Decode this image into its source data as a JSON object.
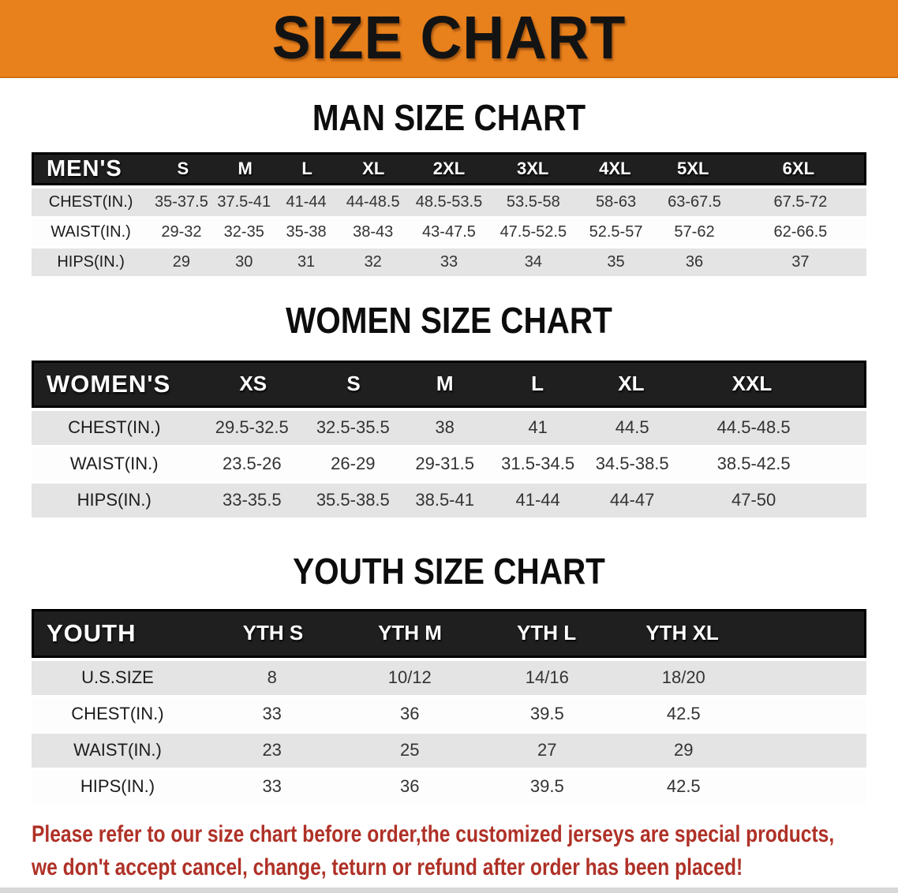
{
  "banner": {
    "title": "SIZE CHART"
  },
  "sections": [
    {
      "id": "men",
      "title": "MAN SIZE CHART",
      "table": {
        "header_label": "MEN'S",
        "columns": [
          "S",
          "M",
          "L",
          "XL",
          "2XL",
          "3XL",
          "4XL",
          "5XL",
          "6XL"
        ],
        "rows": [
          {
            "label": "CHEST(IN.)",
            "values": [
              "35-37.5",
              "37.5-41",
              "41-44",
              "44-48.5",
              "48.5-53.5",
              "53.5-58",
              "58-63",
              "63-67.5",
              "67.5-72"
            ]
          },
          {
            "label": "WAIST(IN.)",
            "values": [
              "29-32",
              "32-35",
              "35-38",
              "38-43",
              "43-47.5",
              "47.5-52.5",
              "52.5-57",
              "57-62",
              "62-66.5"
            ]
          },
          {
            "label": "HIPS(IN.)",
            "values": [
              "29",
              "30",
              "31",
              "32",
              "33",
              "34",
              "35",
              "36",
              "37"
            ]
          }
        ]
      }
    },
    {
      "id": "women",
      "title": "WOMEN SIZE CHART",
      "table": {
        "header_label": "WOMEN'S",
        "columns": [
          "XS",
          "S",
          "M",
          "L",
          "XL",
          "XXL"
        ],
        "rows": [
          {
            "label": "CHEST(IN.)",
            "values": [
              "29.5-32.5",
              "32.5-35.5",
              "38",
              "41",
              "44.5",
              "44.5-48.5"
            ]
          },
          {
            "label": "WAIST(IN.)",
            "values": [
              "23.5-26",
              "26-29",
              "29-31.5",
              "31.5-34.5",
              "34.5-38.5",
              "38.5-42.5"
            ]
          },
          {
            "label": "HIPS(IN.)",
            "values": [
              "33-35.5",
              "35.5-38.5",
              "38.5-41",
              "41-44",
              "44-47",
              "47-50"
            ]
          }
        ]
      }
    },
    {
      "id": "youth",
      "title": "YOUTH SIZE CHART",
      "table": {
        "header_label": "YOUTH",
        "columns": [
          "YTH S",
          "YTH M",
          "YTH L",
          "YTH XL"
        ],
        "rows": [
          {
            "label": "U.S.SIZE",
            "values": [
              "8",
              "10/12",
              "14/16",
              "18/20"
            ]
          },
          {
            "label": "CHEST(IN.)",
            "values": [
              "33",
              "36",
              "39.5",
              "42.5"
            ]
          },
          {
            "label": "WAIST(IN.)",
            "values": [
              "23",
              "25",
              "27",
              "29"
            ]
          },
          {
            "label": "HIPS(IN.)",
            "values": [
              "33",
              "36",
              "39.5",
              "42.5"
            ]
          }
        ]
      }
    }
  ],
  "footnote": {
    "line1": "Please refer to our size chart before order,the customized jerseys are special products,",
    "line2": "we don't accept cancel, change, teturn or refund after order has been placed!"
  },
  "theme": {
    "banner-bg": "#E8811C",
    "bar-bg": "#1F1F1F",
    "row-shade": "#E4E4E4",
    "note-red": "#AF3127"
  }
}
